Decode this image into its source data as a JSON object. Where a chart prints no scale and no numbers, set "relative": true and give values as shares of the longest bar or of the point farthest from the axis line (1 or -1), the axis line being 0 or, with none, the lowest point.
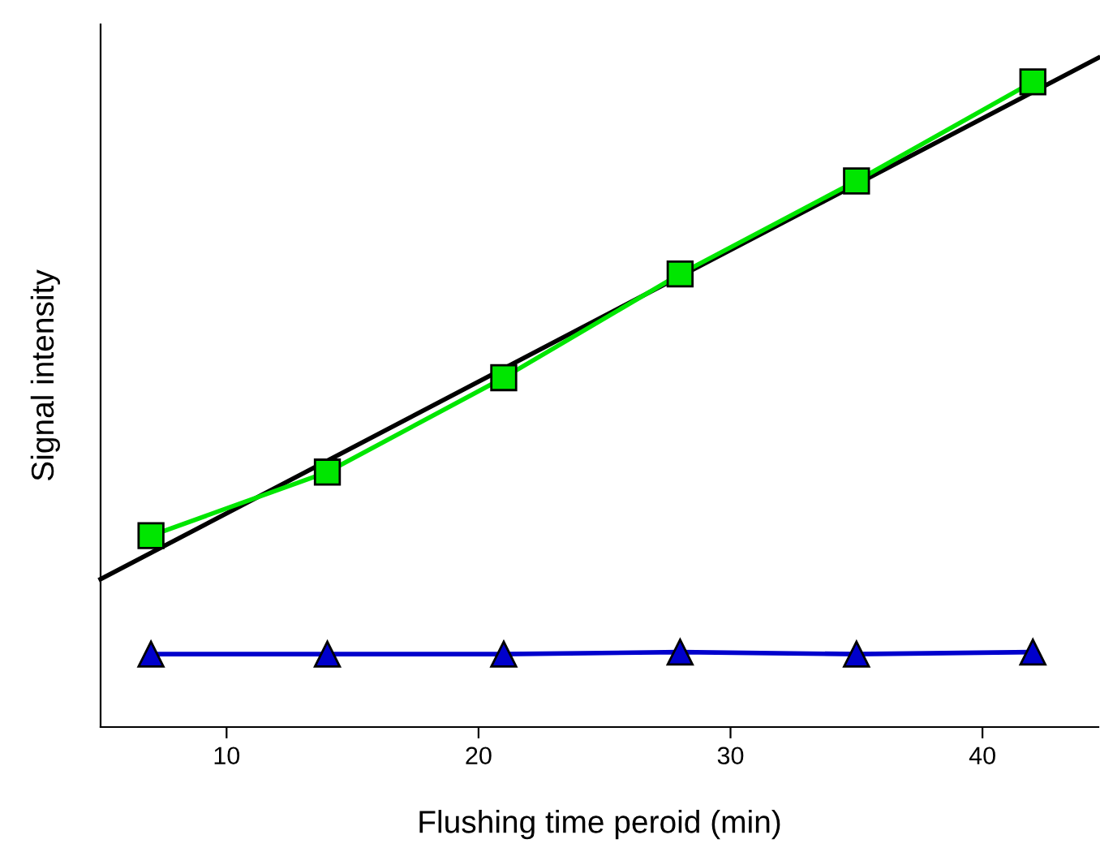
{
  "chart_data": {
    "type": "line",
    "xlabel": "Flushing time peroid (min)",
    "ylabel": "Signal intensity",
    "relative": true,
    "x": [
      7,
      14,
      21,
      28,
      35,
      42
    ],
    "xlim": [
      5,
      44.6
    ],
    "xticks": [
      10,
      20,
      30,
      40
    ],
    "grid": false,
    "legend": false,
    "series": [
      {
        "type": "line",
        "color": "#000000",
        "x": [
          5,
          44.6
        ],
        "values": [
          0.221,
          1
        ],
        "marker": "none"
      },
      {
        "color": "#00e600",
        "values": [
          0.286,
          0.381,
          0.522,
          0.677,
          0.816,
          0.964
        ],
        "marker": "square"
      },
      {
        "color": "#0000cc",
        "values": [
          0.109,
          0.109,
          0.109,
          0.112,
          0.109,
          0.112
        ],
        "marker": "triangle"
      }
    ]
  }
}
